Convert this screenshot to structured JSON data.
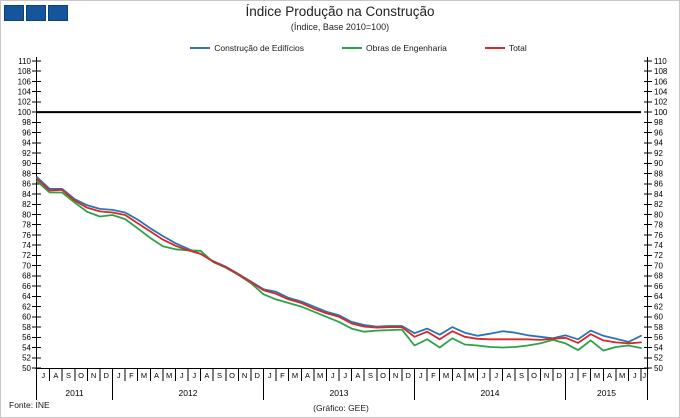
{
  "logo": {
    "color": "#15559b",
    "square_count": 3
  },
  "header": {
    "title": "Índice Produção na Construção",
    "subtitle": "(Índice, Base 2010=100)"
  },
  "legend": [
    {
      "label": "Construção de Edifícios",
      "color": "#2e74b5"
    },
    {
      "label": "Obras de Engenharia",
      "color": "#2ca349"
    },
    {
      "label": "Total",
      "color": "#d42a2a"
    }
  ],
  "footer": {
    "source": "Fonte: INE",
    "credit": "(Gráfico: GEE)"
  },
  "chart_data": {
    "type": "line",
    "title": "Índice Produção na Construção",
    "subtitle": "(Índice, Base 2010=100)",
    "ylabel": "",
    "xlabel": "",
    "ylim": [
      50,
      110
    ],
    "ytick_step": 2,
    "y_axis_sides": "both",
    "grid": false,
    "legend_position": "top",
    "reference_line": 100,
    "axis_color": "#000000",
    "reference_line_color": "#000000",
    "x_months": [
      "J",
      "A",
      "S",
      "O",
      "N",
      "D",
      "J",
      "F",
      "M",
      "A",
      "M",
      "J",
      "J",
      "A",
      "S",
      "O",
      "N",
      "D",
      "J",
      "F",
      "M",
      "A",
      "M",
      "J",
      "J",
      "A",
      "S",
      "O",
      "N",
      "D",
      "J",
      "F",
      "M",
      "A",
      "M",
      "J",
      "J",
      "A",
      "S",
      "O",
      "N",
      "D",
      "J",
      "F",
      "M",
      "A",
      "M",
      "J",
      "J"
    ],
    "years": [
      {
        "label": "2011",
        "months": 6
      },
      {
        "label": "2012",
        "months": 12
      },
      {
        "label": "2013",
        "months": 12
      },
      {
        "label": "2014",
        "months": 12
      },
      {
        "label": "2015",
        "months": 7
      }
    ],
    "x_range_note": "monthly, Jul 2011 - Jul 2015",
    "series": [
      {
        "name": "Construção de Edifícios",
        "color": "#2e74b5",
        "values": [
          87.3,
          85.0,
          85.0,
          83.0,
          81.8,
          81.1,
          80.9,
          80.4,
          79.0,
          77.3,
          75.8,
          74.4,
          73.3,
          72.3,
          70.9,
          69.8,
          68.4,
          66.9,
          65.4,
          64.9,
          63.7,
          63.0,
          62.0,
          61.0,
          60.3,
          59.0,
          58.4,
          58.1,
          58.2,
          58.2,
          56.8,
          57.7,
          56.5,
          58.0,
          56.9,
          56.3,
          56.7,
          57.2,
          56.9,
          56.4,
          56.1,
          55.8,
          56.4,
          55.6,
          57.3,
          56.3,
          55.7,
          55.1,
          56.3
        ]
      },
      {
        "name": "Obras de Engenharia",
        "color": "#2ca349",
        "values": [
          86.5,
          84.3,
          84.3,
          82.3,
          80.5,
          79.6,
          79.9,
          79.1,
          77.3,
          75.4,
          73.8,
          73.2,
          73.0,
          72.9,
          70.7,
          69.6,
          68.2,
          66.6,
          64.4,
          63.4,
          62.7,
          62.0,
          61.0,
          60.0,
          59.0,
          57.7,
          57.1,
          57.3,
          57.4,
          57.5,
          54.4,
          55.6,
          54.0,
          55.8,
          54.6,
          54.4,
          54.1,
          54.0,
          54.1,
          54.4,
          54.8,
          55.5,
          54.8,
          53.5,
          55.4,
          53.4,
          54.1,
          54.4,
          53.9
        ]
      },
      {
        "name": "Total",
        "color": "#d42a2a",
        "values": [
          87.0,
          84.7,
          84.8,
          82.7,
          81.3,
          80.6,
          80.4,
          79.9,
          78.3,
          76.7,
          75.1,
          73.9,
          73.0,
          72.3,
          70.8,
          69.7,
          68.3,
          66.8,
          65.2,
          64.5,
          63.4,
          62.7,
          61.6,
          60.7,
          60.0,
          58.7,
          58.1,
          57.9,
          58.0,
          58.0,
          56.1,
          57.1,
          55.6,
          57.2,
          56.1,
          55.7,
          55.6,
          55.6,
          55.6,
          55.6,
          55.5,
          55.7,
          55.9,
          54.9,
          56.6,
          55.4,
          55.0,
          54.8,
          55.0
        ]
      }
    ]
  }
}
